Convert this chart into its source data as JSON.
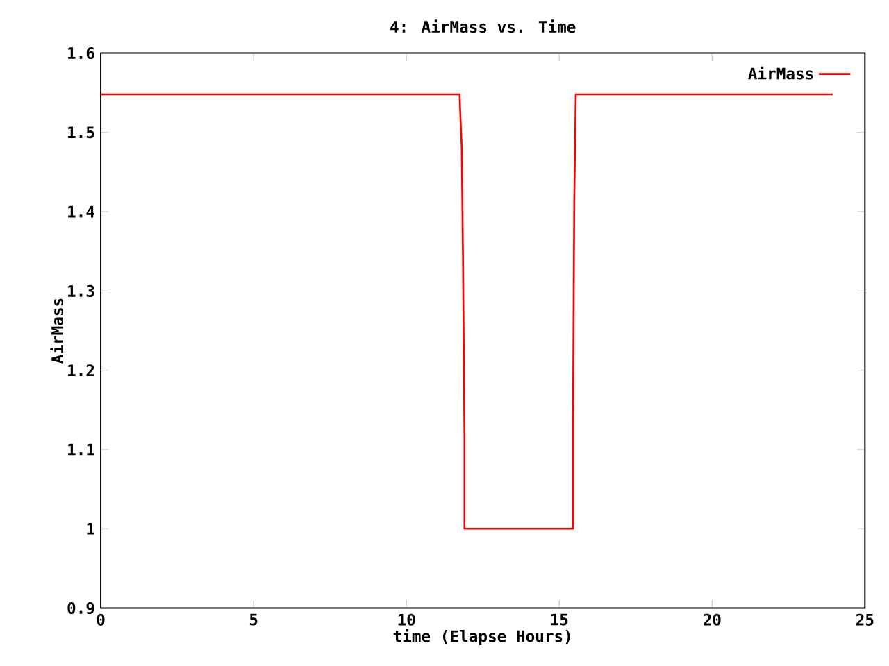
{
  "chart_data": {
    "type": "line",
    "title": "4: AirMass vs. Time",
    "xlabel": "time (Elapse Hours)",
    "ylabel": "AirMass",
    "series": [
      {
        "name": "AirMass",
        "color": "#ff0000",
        "x": [
          0,
          11.74,
          11.76,
          11.81,
          11.85,
          11.9,
          11.9,
          15.45,
          15.45,
          15.49,
          15.54,
          23.95
        ],
        "values": [
          1.548,
          1.548,
          1.526,
          1.481,
          1.344,
          1.115,
          1.0,
          1.0,
          1.137,
          1.411,
          1.548,
          1.548
        ]
      }
    ],
    "xlim": [
      0,
      25
    ],
    "ylim": [
      0.9,
      1.6
    ],
    "xticks": [
      0,
      5,
      10,
      15,
      20,
      25
    ],
    "yticks": [
      0.9,
      1,
      1.1,
      1.2,
      1.3,
      1.4,
      1.5,
      1.6
    ],
    "grid": false,
    "legend": "top right"
  }
}
